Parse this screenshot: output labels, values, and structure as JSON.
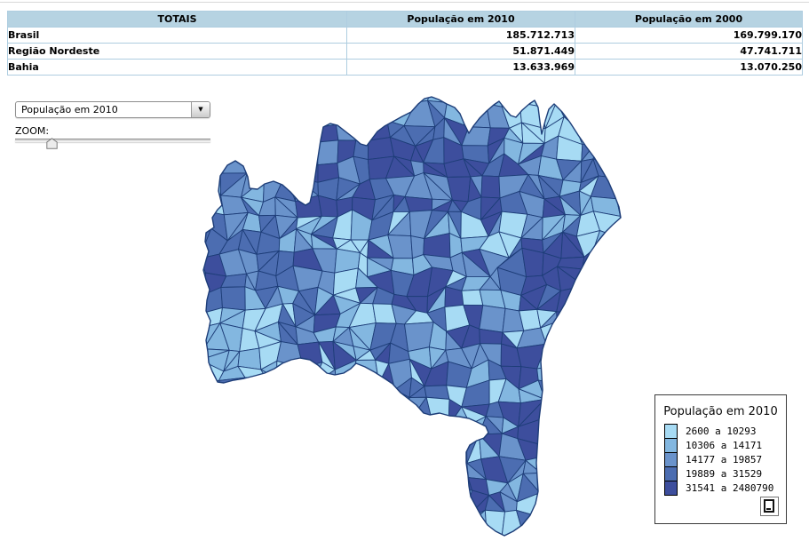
{
  "table": {
    "header": {
      "totals": "TOTAIS",
      "pop2010": "População em 2010",
      "pop2000": "População em 2000"
    },
    "rows": [
      {
        "label": "Brasil",
        "pop2010": "185.712.713",
        "pop2000": "169.799.170"
      },
      {
        "label": "Região Nordeste",
        "pop2010": "51.871.449",
        "pop2000": "47.741.711"
      },
      {
        "label": "Bahia",
        "pop2010": "13.633.969",
        "pop2000": "13.070.250"
      }
    ]
  },
  "controls": {
    "indicator_dropdown": {
      "value": "População em 2010"
    },
    "zoom_label": "ZOOM:",
    "zoom_slider": {
      "position_percent": 19
    }
  },
  "legend": {
    "title": "População em 2010",
    "classes": [
      {
        "range": "2600 a 10293",
        "color": "#a7dbf4"
      },
      {
        "range": "10306 a 14171",
        "color": "#83b7e0"
      },
      {
        "range": "14177 a 19857",
        "color": "#6a93cb"
      },
      {
        "range": "19889 a 31529",
        "color": "#4c6db1"
      },
      {
        "range": "31541 a 2480790",
        "color": "#3d4e9d"
      }
    ]
  },
  "map": {
    "region": "Bahia",
    "border_color": "#1d3d78",
    "sea_color": "#ffffff"
  }
}
